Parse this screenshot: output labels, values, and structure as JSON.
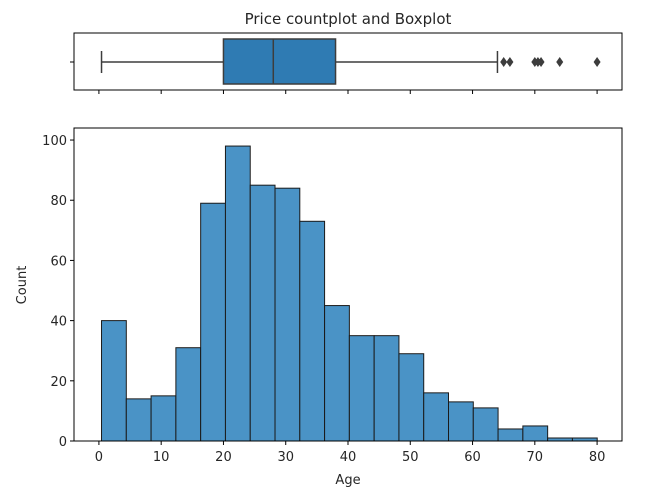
{
  "chart_data": [
    {
      "type": "box",
      "title": "Price countplot and Boxplot",
      "xlim": [
        -4,
        84
      ],
      "whisker_low": 0.42,
      "q1": 20,
      "median": 28,
      "q3": 38,
      "whisker_high": 64,
      "outliers": [
        65,
        66,
        70,
        70.5,
        71,
        74,
        80
      ],
      "color": "#2f7bb3"
    },
    {
      "type": "bar",
      "subtype": "histogram",
      "xlabel": "Age",
      "ylabel": "Count",
      "xlim": [
        -4,
        84
      ],
      "ylim": [
        0,
        104
      ],
      "xticks": [
        0,
        10,
        20,
        30,
        40,
        50,
        60,
        70,
        80
      ],
      "yticks": [
        0,
        20,
        40,
        60,
        80,
        100
      ],
      "bin_width": 3.98,
      "bin_edges_start": 0.42,
      "values": [
        40,
        14,
        15,
        31,
        79,
        98,
        85,
        84,
        73,
        45,
        35,
        35,
        29,
        16,
        13,
        11,
        4,
        5,
        1,
        1
      ],
      "color": "#4a93c6"
    }
  ]
}
